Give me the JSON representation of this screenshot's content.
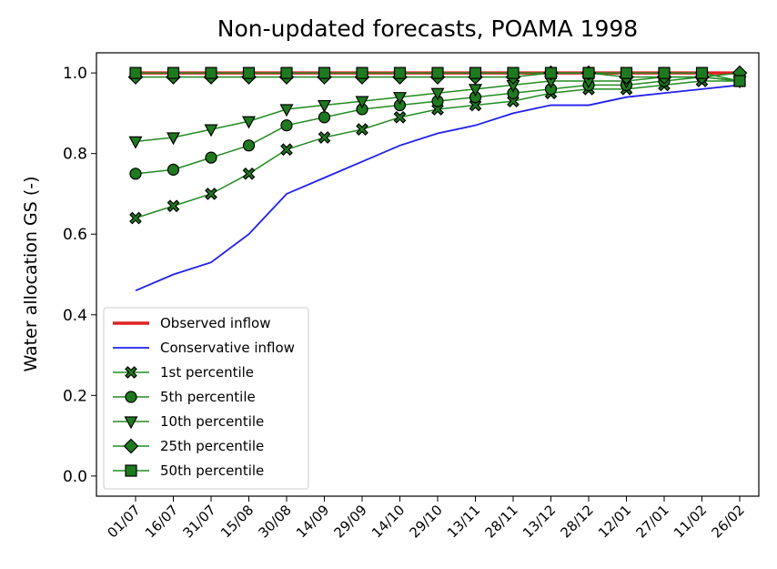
{
  "chart_data": {
    "type": "line",
    "title": "Non-updated forecasts, POAMA 1998",
    "y_label": "Water allocation GS (-)",
    "categories": [
      "01/07",
      "16/07",
      "31/07",
      "15/08",
      "30/08",
      "14/09",
      "29/09",
      "14/10",
      "29/10",
      "13/11",
      "28/11",
      "13/12",
      "28/12",
      "12/01",
      "27/01",
      "11/02",
      "26/02"
    ],
    "ylim": [
      -0.05,
      1.05
    ],
    "yticks": [
      {
        "value": 0,
        "label": "0.0"
      },
      0.2,
      0.4,
      0.6,
      0.8,
      {
        "value": 1,
        "label": "1.0"
      }
    ],
    "legend": "lower left",
    "series": [
      {
        "name": "Observed inflow",
        "color": "#e02020",
        "marker": "none",
        "values": [
          1,
          1,
          1,
          1,
          1,
          1,
          1,
          1,
          1,
          1,
          1,
          1,
          1,
          1,
          1,
          1,
          1
        ]
      },
      {
        "name": "Conservative inflow",
        "color": "#2020ee",
        "marker": "none",
        "values": [
          0.46,
          0.5,
          0.53,
          0.6,
          0.7,
          0.74,
          0.78,
          0.82,
          0.85,
          0.87,
          0.9,
          0.92,
          0.92,
          0.94,
          0.95,
          0.96,
          0.97
        ]
      },
      {
        "name": "1st percentile",
        "color": "#228b22",
        "marker": "x",
        "values": [
          0.64,
          0.67,
          0.7,
          0.75,
          0.81,
          0.84,
          0.86,
          0.89,
          0.91,
          0.92,
          0.93,
          0.95,
          0.96,
          0.96,
          0.97,
          0.98,
          0.98
        ]
      },
      {
        "name": "5th percentile",
        "color": "#228b22",
        "marker": "circle",
        "values": [
          0.75,
          0.76,
          0.79,
          0.82,
          0.87,
          0.89,
          0.91,
          0.92,
          0.93,
          0.94,
          0.95,
          0.96,
          0.97,
          0.97,
          0.98,
          0.99,
          0.98
        ]
      },
      {
        "name": "10th percentile",
        "color": "#228b22",
        "marker": "triangle-down",
        "values": [
          0.83,
          0.84,
          0.86,
          0.88,
          0.91,
          0.92,
          0.93,
          0.94,
          0.95,
          0.96,
          0.97,
          0.98,
          0.98,
          0.98,
          0.99,
          0.99,
          0.98
        ]
      },
      {
        "name": "25th percentile",
        "color": "#228b22",
        "marker": "diamond",
        "values": [
          0.99,
          0.99,
          0.99,
          0.99,
          0.99,
          0.99,
          0.99,
          0.99,
          0.99,
          0.99,
          0.99,
          1,
          1,
          0.99,
          0.99,
          0.99,
          1
        ]
      },
      {
        "name": "50th percentile",
        "color": "#228b22",
        "marker": "square",
        "values": [
          1,
          1,
          1,
          1,
          1,
          1,
          1,
          1,
          1,
          1,
          1,
          1,
          1,
          1,
          1,
          1,
          0.98
        ]
      }
    ]
  }
}
